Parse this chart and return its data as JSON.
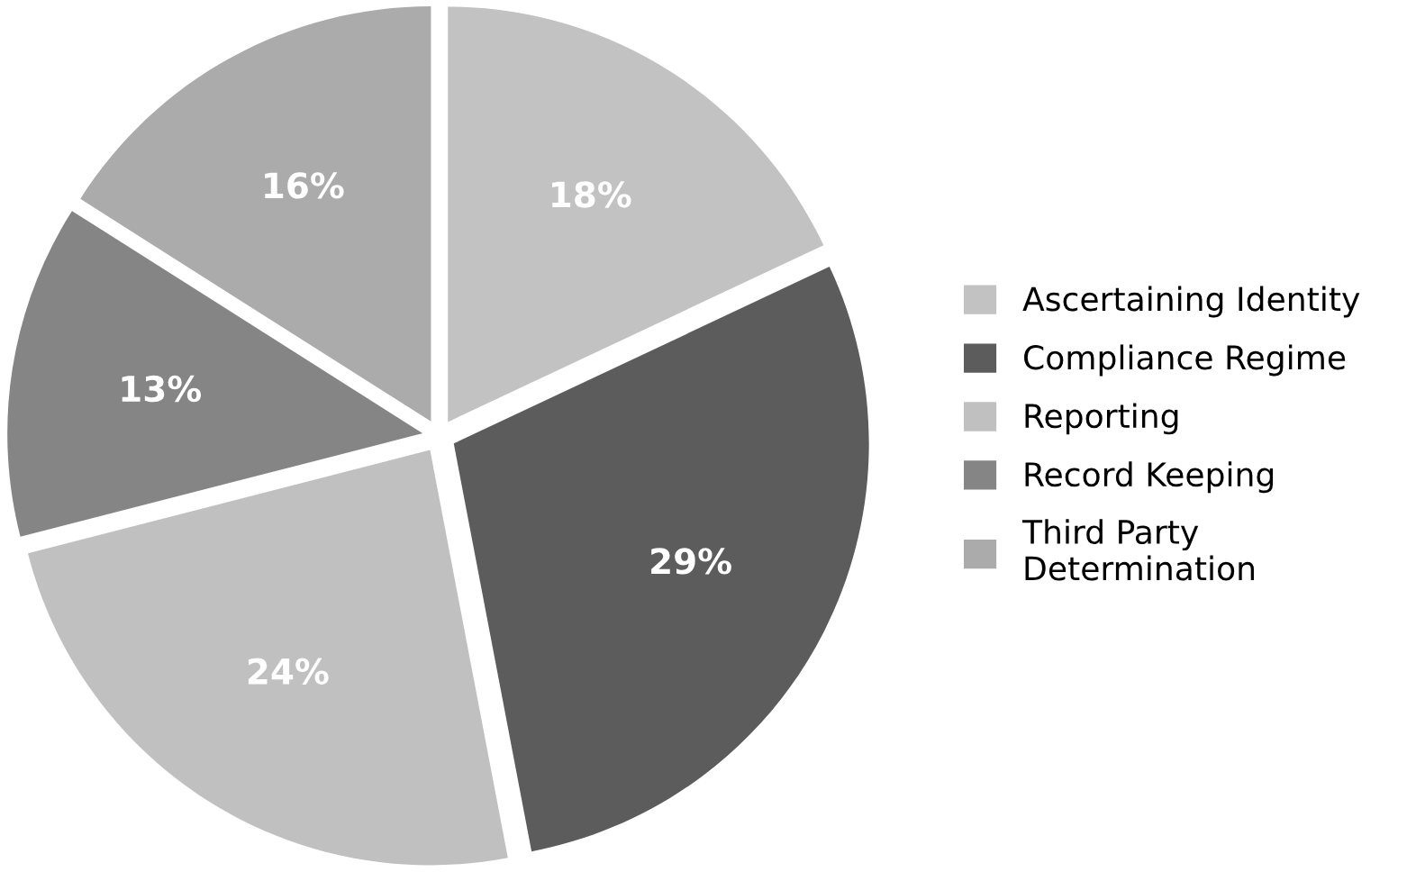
{
  "chart_data": {
    "type": "pie",
    "categories": [
      "Ascertaining Identity",
      "Compliance Regime",
      "Reporting",
      "Record Keeping",
      "Third Party Determination"
    ],
    "values": [
      18,
      29,
      24,
      13,
      16
    ],
    "colors": [
      "#c2c2c2",
      "#5c5c5c",
      "#c0c0c0",
      "#858585",
      "#ababab"
    ],
    "value_labels": [
      "18%",
      "29%",
      "24%",
      "13%",
      "16%"
    ],
    "legend": "right"
  }
}
